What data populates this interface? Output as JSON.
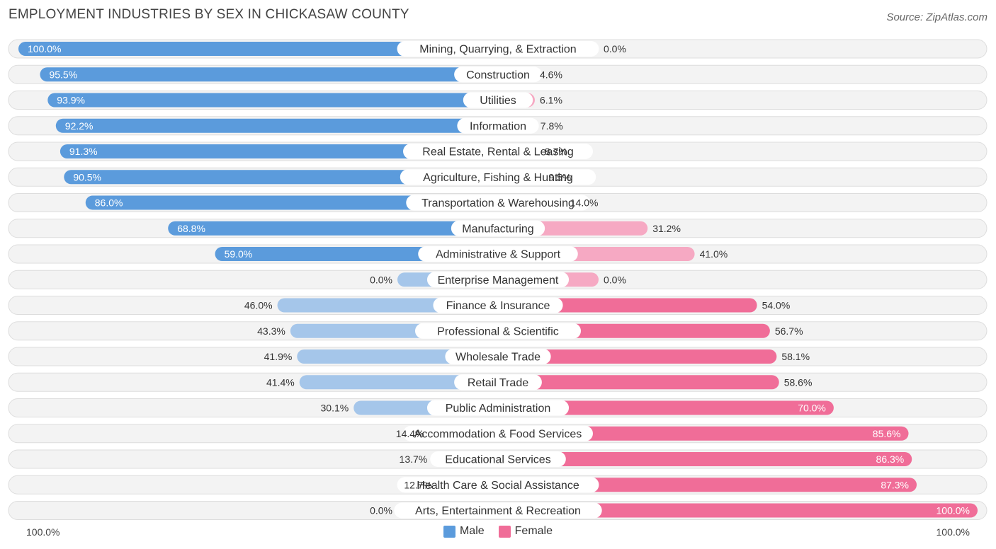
{
  "header": {
    "title": "EMPLOYMENT INDUSTRIES BY SEX IN CHICKASAW COUNTY",
    "source": "Source: ZipAtlas.com"
  },
  "colors": {
    "male_strong": "#5b9bdc",
    "male_light": "#a5c6ea",
    "female_strong": "#f06d98",
    "female_light": "#f6a9c3"
  },
  "legend": {
    "male": "Male",
    "female": "Female"
  },
  "axis": {
    "left": "100.0%",
    "right": "100.0%"
  },
  "chart_data": {
    "type": "bar",
    "orientation": "diverging-horizontal",
    "title": "EMPLOYMENT INDUSTRIES BY SEX IN CHICKASAW COUNTY",
    "xlim": [
      -100,
      100
    ],
    "categories": [
      "Mining, Quarrying, & Extraction",
      "Construction",
      "Utilities",
      "Information",
      "Real Estate, Rental & Leasing",
      "Agriculture, Fishing & Hunting",
      "Transportation & Warehousing",
      "Manufacturing",
      "Administrative & Support",
      "Enterprise Management",
      "Finance & Insurance",
      "Professional & Scientific",
      "Wholesale Trade",
      "Retail Trade",
      "Public Administration",
      "Accommodation & Food Services",
      "Educational Services",
      "Health Care & Social Assistance",
      "Arts, Entertainment & Recreation"
    ],
    "series": [
      {
        "name": "Male",
        "values": [
          100.0,
          95.5,
          93.9,
          92.2,
          91.3,
          90.5,
          86.0,
          68.8,
          59.0,
          0.0,
          46.0,
          43.3,
          41.9,
          41.4,
          30.1,
          14.4,
          13.7,
          12.7,
          0.0
        ],
        "labels": [
          "100.0%",
          "95.5%",
          "93.9%",
          "92.2%",
          "91.3%",
          "90.5%",
          "86.0%",
          "68.8%",
          "59.0%",
          "0.0%",
          "46.0%",
          "43.3%",
          "41.9%",
          "41.4%",
          "30.1%",
          "14.4%",
          "13.7%",
          "12.7%",
          "0.0%"
        ]
      },
      {
        "name": "Female",
        "values": [
          0.0,
          4.6,
          6.1,
          7.8,
          8.7,
          9.5,
          14.0,
          31.2,
          41.0,
          0.0,
          54.0,
          56.7,
          58.1,
          58.6,
          70.0,
          85.6,
          86.3,
          87.3,
          100.0
        ],
        "labels": [
          "0.0%",
          "4.6%",
          "6.1%",
          "7.8%",
          "8.7%",
          "9.5%",
          "14.0%",
          "31.2%",
          "41.0%",
          "0.0%",
          "54.0%",
          "56.7%",
          "58.1%",
          "58.6%",
          "70.0%",
          "85.6%",
          "86.3%",
          "87.3%",
          "100.0%"
        ]
      }
    ],
    "legend": [
      "Male",
      "Female"
    ],
    "legend_position": "bottom-center"
  }
}
